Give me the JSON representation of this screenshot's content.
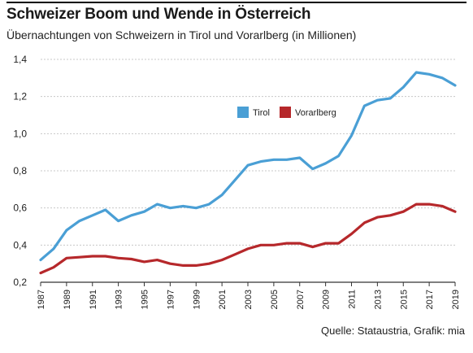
{
  "header": {
    "title": "Schweizer Boom und Wende in Österreich",
    "subtitle": "Übernachtungen von Schweizern in Tirol und Vorarlberg (in Millionen)"
  },
  "footer": {
    "source": "Quelle: Stataustria, Grafik: mia"
  },
  "chart_data": {
    "type": "line",
    "title": "Schweizer Boom und Wende in Österreich",
    "subtitle": "Übernachtungen von Schweizern in Tirol und Vorarlberg (in Millionen)",
    "x": [
      1987,
      1988,
      1989,
      1990,
      1991,
      1992,
      1993,
      1994,
      1995,
      1996,
      1997,
      1998,
      1999,
      2000,
      2001,
      2002,
      2003,
      2004,
      2005,
      2006,
      2007,
      2008,
      2009,
      2010,
      2011,
      2012,
      2013,
      2014,
      2015,
      2016,
      2017,
      2018,
      2019
    ],
    "x_tick_labels": [
      "1987",
      "1989",
      "1991",
      "1993",
      "1995",
      "1997",
      "1999",
      "2001",
      "2003",
      "2005",
      "2007",
      "2009",
      "2011",
      "2013",
      "2015",
      "2017",
      "2019"
    ],
    "y_tick_labels": [
      "0,2",
      "0,4",
      "0,6",
      "0,8",
      "1,0",
      "1,2",
      "1,4"
    ],
    "ylim": [
      0.2,
      1.4
    ],
    "grid": true,
    "legend_position": "top-right",
    "series": [
      {
        "name": "Tirol",
        "color": "#4a9fd5",
        "values": [
          0.32,
          0.38,
          0.48,
          0.53,
          0.56,
          0.59,
          0.53,
          0.56,
          0.58,
          0.62,
          0.6,
          0.61,
          0.6,
          0.62,
          0.67,
          0.75,
          0.83,
          0.85,
          0.86,
          0.86,
          0.87,
          0.81,
          0.84,
          0.88,
          0.99,
          1.15,
          1.18,
          1.19,
          1.25,
          1.33,
          1.32,
          1.3,
          1.26
        ]
      },
      {
        "name": "Vorarlberg",
        "color": "#b6282b",
        "values": [
          0.25,
          0.28,
          0.33,
          0.335,
          0.34,
          0.34,
          0.33,
          0.325,
          0.31,
          0.32,
          0.3,
          0.29,
          0.29,
          0.3,
          0.32,
          0.35,
          0.38,
          0.4,
          0.4,
          0.41,
          0.41,
          0.39,
          0.41,
          0.41,
          0.46,
          0.52,
          0.55,
          0.56,
          0.58,
          0.62,
          0.62,
          0.61,
          0.58
        ]
      }
    ]
  }
}
